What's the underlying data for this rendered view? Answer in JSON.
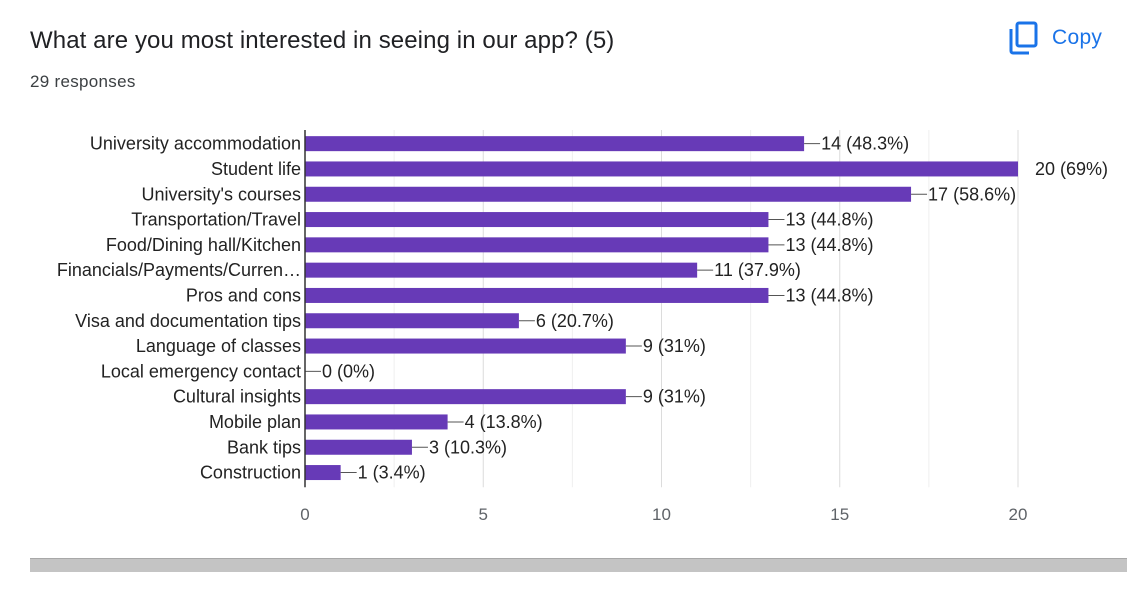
{
  "question": {
    "title": "What are you most interested in seeing in our app? (5)",
    "responses": "29 responses"
  },
  "toolbar": {
    "copy_label": "Copy",
    "copy_icon": "copy-icon"
  },
  "colors": {
    "bar": "#673ab7",
    "accent": "#1a73e8",
    "text": "#202124",
    "grid": "#e8e8e8"
  },
  "chart_data": {
    "type": "bar",
    "orientation": "horizontal",
    "categories": [
      "University accommodation",
      "Student life",
      "University's courses",
      "Transportation/Travel",
      "Food/Dining hall/Kitchen",
      "Financials/Payments/Curren…",
      "Pros and cons",
      "Visa and documentation tips",
      "Language of classes",
      "Local emergency contact",
      "Cultural insights",
      "Mobile plan",
      "Bank tips",
      "Construction"
    ],
    "values": [
      14,
      20,
      17,
      13,
      13,
      11,
      13,
      6,
      9,
      0,
      9,
      4,
      3,
      1
    ],
    "data_labels": [
      "14 (48.3%)",
      "20 (69%)",
      "17 (58.6%)",
      "13 (44.8%)",
      "13 (44.8%)",
      "11 (37.9%)",
      "13 (44.8%)",
      "6 (20.7%)",
      "9 (31%)",
      "0 (0%)",
      "9 (31%)",
      "4 (13.8%)",
      "3 (10.3%)",
      "1 (3.4%)"
    ],
    "xlim": [
      0,
      20
    ],
    "xticks": [
      0,
      5,
      10,
      15,
      20
    ],
    "grid": true,
    "title": "",
    "xlabel": "",
    "ylabel": ""
  }
}
